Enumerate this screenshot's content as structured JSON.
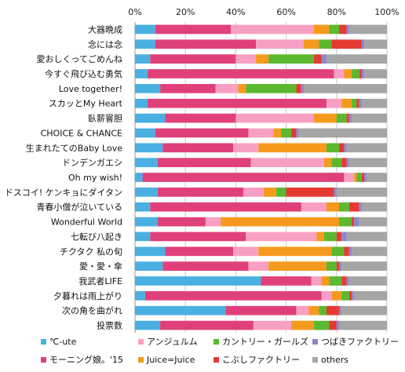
{
  "chart_data": {
    "type": "bar",
    "orientation": "horizontal",
    "stacked": "percent",
    "xlim": [
      0,
      100
    ],
    "x_ticks": [
      "0%",
      "20%",
      "40%",
      "60%",
      "80%",
      "100%"
    ],
    "x_axis_position": "top",
    "grid": true,
    "legend_position": "bottom",
    "categories": [
      "大器晩成",
      "念には念",
      "愛おしくってごめんね",
      "今すぐ飛び込む勇気",
      "Love together!",
      "スカッとMy Heart",
      "臥薪嘗胆",
      "CHOICE & CHANCE",
      "生まれたてのBaby Love",
      "ドンデンガエシ",
      "Oh my wish!",
      "ドスコイ! ケンキョにダイタン",
      "青春小僧が泣いている",
      "Wonderful World",
      "七転び八起き",
      "チクタク 私の旬",
      "愛・愛・傘",
      "我武者LIFE",
      "夕暮れは雨上がり",
      "次の角を曲がれ",
      "投票数"
    ],
    "series": [
      {
        "name": "℃-ute",
        "color": "#4ab0e2",
        "values": [
          8,
          8,
          6,
          5,
          10,
          5,
          12,
          8,
          11,
          9,
          3,
          9,
          6,
          9,
          6,
          12,
          11,
          50,
          4,
          36,
          10
        ]
      },
      {
        "name": "モーニング娘。'15",
        "color": "#e0407a",
        "values": [
          30,
          40,
          34,
          74,
          22,
          71,
          28,
          37,
          28,
          37,
          80,
          34,
          60,
          19,
          38,
          27,
          34,
          20,
          70,
          28,
          37
        ]
      },
      {
        "name": "アンジュルム",
        "color": "#f7a0c4",
        "values": [
          33,
          19,
          8,
          4,
          9,
          6,
          31,
          10,
          10,
          29,
          4,
          8,
          10,
          6,
          28,
          10,
          8,
          4,
          4,
          5,
          15
        ]
      },
      {
        "name": "Juice=Juice",
        "color": "#f59a1d",
        "values": [
          6,
          6,
          5,
          3,
          3,
          4,
          9,
          3,
          27,
          3,
          1,
          5,
          5,
          47,
          3,
          29,
          23,
          3,
          4,
          4,
          9
        ]
      },
      {
        "name": "カントリー・ガールズ",
        "color": "#5cb82f",
        "values": [
          4,
          5,
          18,
          3,
          20,
          2,
          4,
          4,
          5,
          4,
          2,
          4,
          4,
          5,
          5,
          5,
          4,
          5,
          3,
          3,
          6
        ]
      },
      {
        "name": "こぶしファクトリー",
        "color": "#e53a32",
        "values": [
          3,
          12,
          3,
          1,
          2,
          1,
          1,
          2,
          2,
          2,
          1,
          19,
          4,
          1,
          2,
          2,
          1,
          2,
          1,
          5,
          3
        ]
      },
      {
        "name": "つばきファクトリー",
        "color": "#8e86cc",
        "values": [
          1,
          1,
          2,
          1,
          1,
          1,
          1,
          1,
          1,
          1,
          1,
          1,
          1,
          2,
          2,
          1,
          1,
          1,
          1,
          1,
          1
        ]
      },
      {
        "name": "others",
        "color": "#a5a5a5",
        "values": [
          15,
          9,
          24,
          9,
          33,
          10,
          14,
          35,
          16,
          15,
          8,
          20,
          10,
          11,
          16,
          14,
          18,
          15,
          13,
          18,
          19
        ]
      }
    ],
    "legend_order": [
      "℃-ute",
      "アンジュルム",
      "カントリー・ガールズ",
      "つばきファクトリー",
      "モーニング娘。'15",
      "Juice=Juice",
      "こぶしファクトリー",
      "others"
    ]
  }
}
